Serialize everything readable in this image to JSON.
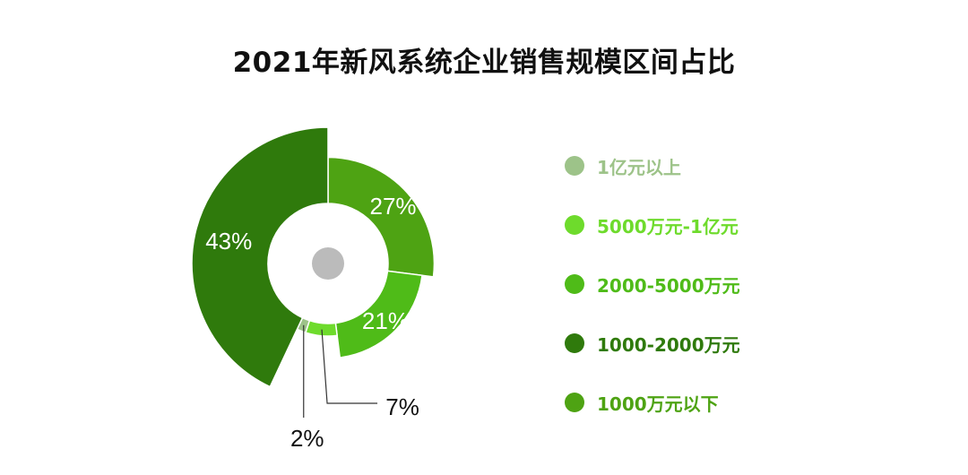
{
  "chart_data": {
    "type": "pie",
    "variant": "variable-radius donut",
    "title": "2021年新风系统企业销售规模区间占比",
    "categories": [
      "1000万元以下",
      "2000-5000万元",
      "5000万元-1亿元",
      "1亿元以上",
      "1000-2000万元"
    ],
    "values": [
      27,
      21,
      7,
      2,
      43
    ],
    "value_labels": [
      "27%",
      "21%",
      "7%",
      "2%",
      "43%"
    ],
    "colors": [
      "#4ea313",
      "#4fbb18",
      "#6edb2c",
      "#9dc389",
      "#2f7a0c"
    ],
    "legend": {
      "placement": "right",
      "items": [
        {
          "label": "1亿元以上",
          "color": "#9dc389"
        },
        {
          "label": "5000万元-1亿元",
          "color": "#6edb2c"
        },
        {
          "label": "2000-5000万元",
          "color": "#4fbb18"
        },
        {
          "label": "1000-2000万元",
          "color": "#2f7a0c"
        },
        {
          "label": "1000万元以下",
          "color": "#4ea313"
        }
      ]
    },
    "center_marker_color": "#bbbbbb"
  }
}
